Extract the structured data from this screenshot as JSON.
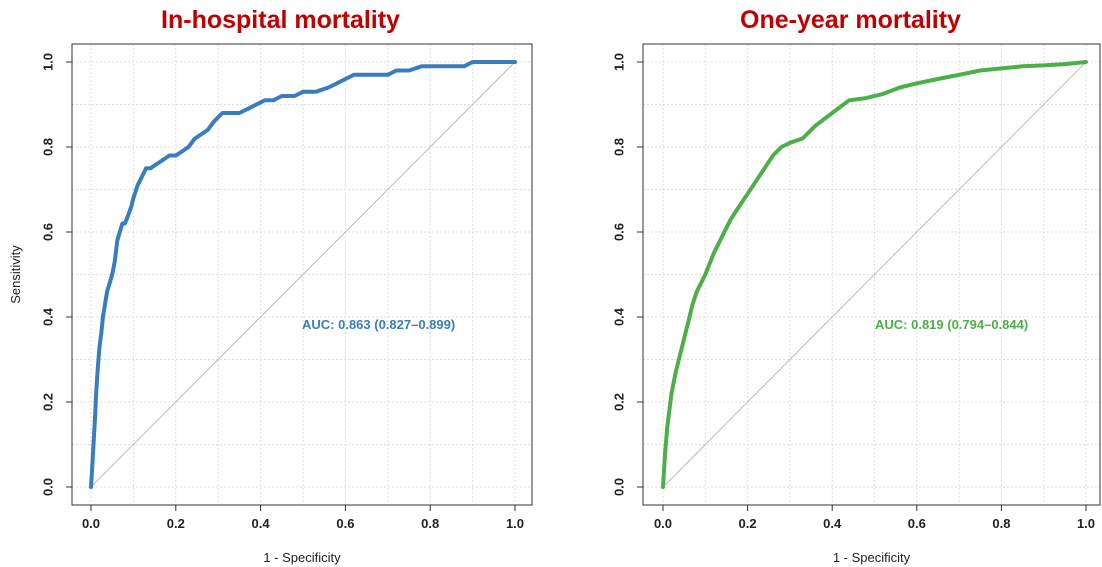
{
  "chart_data": [
    {
      "type": "line",
      "title": "In-hospital mortality",
      "xlabel": "1 - Specificity",
      "ylabel": "Sensitivity",
      "xlim": [
        0,
        1
      ],
      "ylim": [
        0,
        1
      ],
      "xticks": [
        "0.0",
        "0.2",
        "0.4",
        "0.6",
        "0.8",
        "1.0"
      ],
      "yticks": [
        "0.0",
        "0.2",
        "0.4",
        "0.6",
        "0.8",
        "1.0"
      ],
      "grid": true,
      "reference_line": [
        [
          0,
          0
        ],
        [
          1,
          1
        ]
      ],
      "annotation": "AUC: 0.863 (0.827–0.899)",
      "color": "#3A7DBF",
      "series": [
        {
          "x": [
            0,
            0.003,
            0.006,
            0.01,
            0.012,
            0.016,
            0.02,
            0.024,
            0.028,
            0.033,
            0.038,
            0.044,
            0.05,
            0.056,
            0.062,
            0.068,
            0.074,
            0.08,
            0.088,
            0.095,
            0.1,
            0.11,
            0.12,
            0.13,
            0.14,
            0.155,
            0.17,
            0.185,
            0.2,
            0.215,
            0.23,
            0.245,
            0.26,
            0.275,
            0.29,
            0.31,
            0.33,
            0.35,
            0.37,
            0.39,
            0.41,
            0.43,
            0.45,
            0.48,
            0.5,
            0.53,
            0.56,
            0.58,
            0.6,
            0.62,
            0.65,
            0.7,
            0.72,
            0.75,
            0.78,
            0.8,
            0.85,
            0.88,
            0.9,
            0.95,
            1.0
          ],
          "y": [
            0,
            0.05,
            0.1,
            0.17,
            0.22,
            0.28,
            0.33,
            0.36,
            0.4,
            0.43,
            0.46,
            0.48,
            0.5,
            0.53,
            0.58,
            0.6,
            0.62,
            0.62,
            0.64,
            0.66,
            0.68,
            0.71,
            0.73,
            0.75,
            0.75,
            0.76,
            0.77,
            0.78,
            0.78,
            0.79,
            0.8,
            0.82,
            0.83,
            0.84,
            0.86,
            0.88,
            0.88,
            0.88,
            0.89,
            0.9,
            0.91,
            0.91,
            0.92,
            0.92,
            0.93,
            0.93,
            0.94,
            0.95,
            0.96,
            0.97,
            0.97,
            0.97,
            0.98,
            0.98,
            0.99,
            0.99,
            0.99,
            0.99,
            1.0,
            1.0,
            1.0
          ]
        }
      ]
    },
    {
      "type": "line",
      "title": "One-year mortality",
      "xlabel": "1 - Specificity",
      "ylabel": "",
      "xlim": [
        0,
        1
      ],
      "ylim": [
        0,
        1
      ],
      "xticks": [
        "0.0",
        "0.2",
        "0.4",
        "0.6",
        "0.8",
        "1.0"
      ],
      "yticks": [
        "0.0",
        "0.2",
        "0.4",
        "0.6",
        "0.8",
        "1.0"
      ],
      "grid": true,
      "reference_line": [
        [
          0,
          0
        ],
        [
          1,
          1
        ]
      ],
      "annotation": "AUC: 0.819 (0.794–0.844)",
      "color": "#4DAF4A",
      "series": [
        {
          "x": [
            0,
            0.005,
            0.01,
            0.02,
            0.03,
            0.04,
            0.05,
            0.06,
            0.07,
            0.08,
            0.09,
            0.1,
            0.12,
            0.14,
            0.16,
            0.18,
            0.2,
            0.22,
            0.24,
            0.26,
            0.28,
            0.3,
            0.33,
            0.36,
            0.4,
            0.44,
            0.48,
            0.52,
            0.56,
            0.6,
            0.65,
            0.7,
            0.75,
            0.8,
            0.85,
            0.9,
            0.95,
            1.0
          ],
          "y": [
            0,
            0.08,
            0.14,
            0.22,
            0.27,
            0.31,
            0.35,
            0.39,
            0.43,
            0.46,
            0.48,
            0.5,
            0.55,
            0.59,
            0.63,
            0.66,
            0.69,
            0.72,
            0.75,
            0.78,
            0.8,
            0.81,
            0.82,
            0.85,
            0.88,
            0.91,
            0.915,
            0.925,
            0.94,
            0.95,
            0.96,
            0.97,
            0.98,
            0.985,
            0.99,
            0.992,
            0.995,
            1.0
          ]
        }
      ]
    }
  ]
}
